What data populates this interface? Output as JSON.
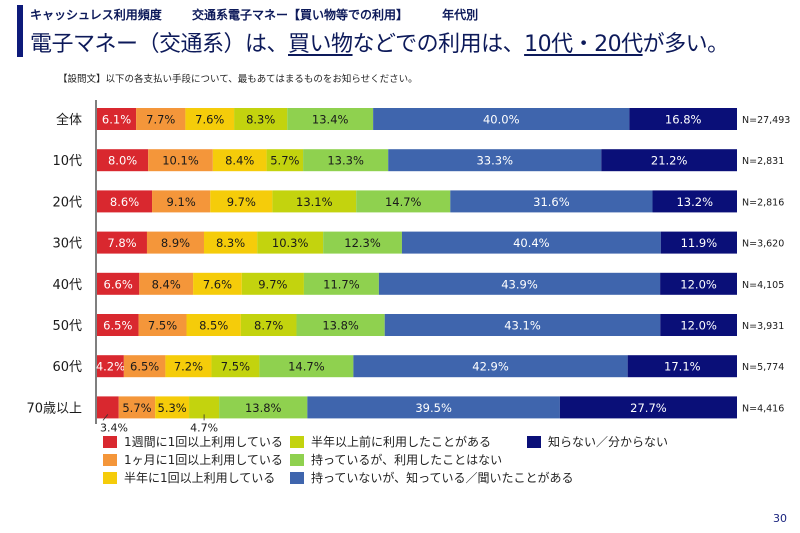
{
  "header": {
    "category": "キャッシュレス利用頻度",
    "subject": "交通系電子マネー【買い物等での利用】",
    "breakdown": "年代別",
    "title_parts": [
      {
        "text": "電子マネー（交通系）は、",
        "underline": false
      },
      {
        "text": "買い物",
        "underline": true
      },
      {
        "text": "などでの利用は、",
        "underline": false
      },
      {
        "text": "10代・20代",
        "underline": true
      },
      {
        "text": "が多い。",
        "underline": false
      }
    ],
    "question": "【設問文】以下の各支払い手段について、最もあてはまるものをお知らせください。"
  },
  "page_number": "30",
  "chart_data": {
    "type": "bar",
    "orientation": "horizontal",
    "stacked": "100%",
    "title": "電子マネー（交通系）は、買い物などでの利用は、10代・20代が多い。",
    "xlabel": "",
    "ylabel": "",
    "xlim": [
      0,
      100
    ],
    "grid": false,
    "legend_position": "bottom",
    "categories": [
      "全体",
      "10代",
      "20代",
      "30代",
      "40代",
      "50代",
      "60代",
      "70歳以上"
    ],
    "sample_sizes": [
      "N=27,493",
      "N=2,831",
      "N=2,816",
      "N=3,620",
      "N=4,105",
      "N=3,931",
      "N=5,774",
      "N=4,416"
    ],
    "series": [
      {
        "name": "1週間に1回以上利用している",
        "color": "#d9282f",
        "values": [
          6.1,
          8.0,
          8.6,
          7.8,
          6.6,
          6.5,
          4.2,
          3.4
        ]
      },
      {
        "name": "1ヶ月に1回以上利用している",
        "color": "#f4963a",
        "values": [
          7.7,
          10.1,
          9.1,
          8.9,
          8.4,
          7.5,
          6.5,
          5.7
        ]
      },
      {
        "name": "半年に1回以上利用している",
        "color": "#f5cc0a",
        "values": [
          7.6,
          8.4,
          9.7,
          8.3,
          7.6,
          8.5,
          7.2,
          5.3
        ]
      },
      {
        "name": "半年以上前に利用したことがある",
        "color": "#c3d30e",
        "values": [
          8.3,
          5.7,
          13.1,
          10.3,
          9.7,
          8.7,
          7.5,
          4.7
        ]
      },
      {
        "name": "持っているが、利用したことはない",
        "color": "#8fd14f",
        "values": [
          13.4,
          13.3,
          14.7,
          12.3,
          11.7,
          13.8,
          14.7,
          13.8
        ]
      },
      {
        "name": "持っていないが、知っている／聞いたことがある",
        "color": "#3f65ad",
        "values": [
          40.0,
          33.3,
          31.6,
          40.4,
          43.9,
          43.1,
          42.9,
          39.5
        ]
      },
      {
        "name": "知らない／分からない",
        "color": "#0a0f78",
        "values": [
          16.8,
          21.2,
          13.2,
          11.9,
          12.0,
          12.0,
          17.1,
          27.7
        ]
      }
    ],
    "label_text_colors": [
      "#ffffff",
      "#1a1a1a",
      "#1a1a1a",
      "#1a1a1a",
      "#1a1a1a",
      "#ffffff",
      "#ffffff"
    ],
    "outside_labels": [
      {
        "category": "70歳以上",
        "series": "1週間に1回以上利用している",
        "text": "3.4%"
      },
      {
        "category": "70歳以上",
        "series": "半年以上前に利用したことがある",
        "text": "4.7%"
      }
    ]
  }
}
